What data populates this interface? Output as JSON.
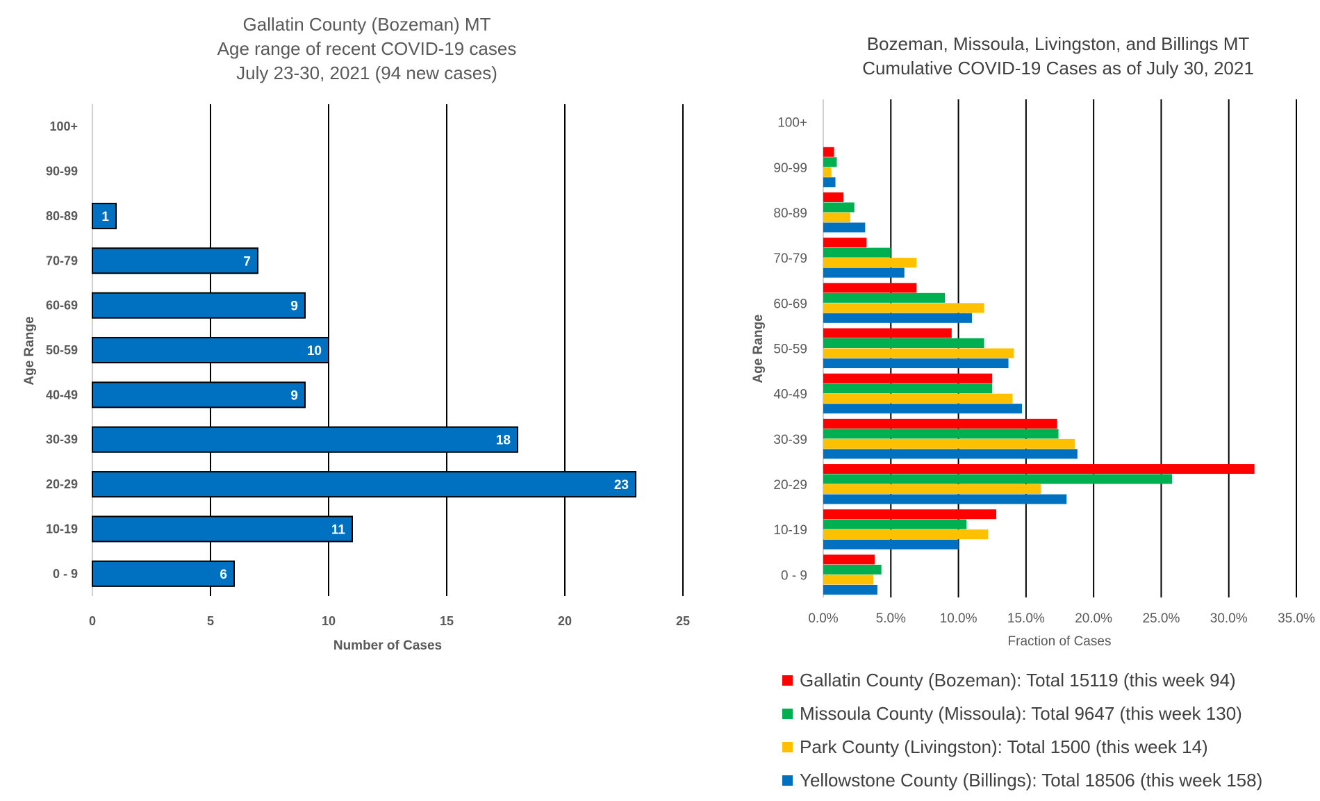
{
  "chart_data": [
    {
      "type": "bar",
      "orientation": "horizontal",
      "title": [
        "Gallatin County (Bozeman) MT",
        "Age range of recent COVID-19 cases",
        "July 23-30, 2021 (94 new cases)"
      ],
      "xlabel": "Number of Cases",
      "ylabel": "Age Range",
      "xlim": [
        0,
        25
      ],
      "xticks": [
        "0",
        "5",
        "10",
        "15",
        "20",
        "25"
      ],
      "categories": [
        "100+",
        "90-99",
        "80-89",
        "70-79",
        "60-69",
        "50-59",
        "40-49",
        "30-39",
        "20-29",
        "10-19",
        "0 - 9"
      ],
      "values": [
        0,
        0,
        1,
        7,
        9,
        10,
        9,
        18,
        23,
        11,
        6
      ],
      "data_labels": [
        "",
        "",
        "1",
        "7",
        "9",
        "10",
        "9",
        "18",
        "23",
        "11",
        "6"
      ],
      "bar_color": "#0070C0",
      "grid": "vertical"
    },
    {
      "type": "bar",
      "orientation": "horizontal",
      "title": [
        "Bozeman, Missoula, Livingston, and Billings MT",
        "Cumulative COVID-19 Cases as of July 30, 2021"
      ],
      "xlabel": "Fraction of Cases",
      "ylabel": "Age Range",
      "xlim": [
        0,
        35
      ],
      "xticks": [
        "0.0%",
        "5.0%",
        "10.0%",
        "15.0%",
        "20.0%",
        "25.0%",
        "30.0%",
        "35.0%"
      ],
      "categories": [
        "100+",
        "90-99",
        "80-89",
        "70-79",
        "60-69",
        "50-59",
        "40-49",
        "30-39",
        "20-29",
        "10-19",
        "0 - 9"
      ],
      "series": [
        {
          "name": "Gallatin County (Bozeman): Total 15119 (this week 94)",
          "color": "#FF0000",
          "values": [
            0,
            0.8,
            1.5,
            3.2,
            6.9,
            9.5,
            12.5,
            17.3,
            31.9,
            12.8,
            3.8
          ]
        },
        {
          "name": "Missoula County (Missoula): Total 9647 (this week 130)",
          "color": "#00B050",
          "values": [
            0,
            1.0,
            2.3,
            5.0,
            9.0,
            11.9,
            12.5,
            17.4,
            25.8,
            10.6,
            4.3
          ]
        },
        {
          "name": "Park County (Livingston): Total 1500 (this week 14)",
          "color": "#FFC000",
          "values": [
            0,
            0.6,
            2.0,
            6.9,
            11.9,
            14.1,
            14.0,
            18.6,
            16.1,
            12.2,
            3.7
          ]
        },
        {
          "name": "Yellowstone County (Billings): Total 18506 (this week 158)",
          "color": "#0070C0",
          "values": [
            0,
            0.9,
            3.1,
            6.0,
            11.0,
            13.7,
            14.7,
            18.8,
            18.0,
            10.0,
            4.0
          ]
        }
      ],
      "legend": "bottom",
      "grid": "vertical"
    }
  ]
}
